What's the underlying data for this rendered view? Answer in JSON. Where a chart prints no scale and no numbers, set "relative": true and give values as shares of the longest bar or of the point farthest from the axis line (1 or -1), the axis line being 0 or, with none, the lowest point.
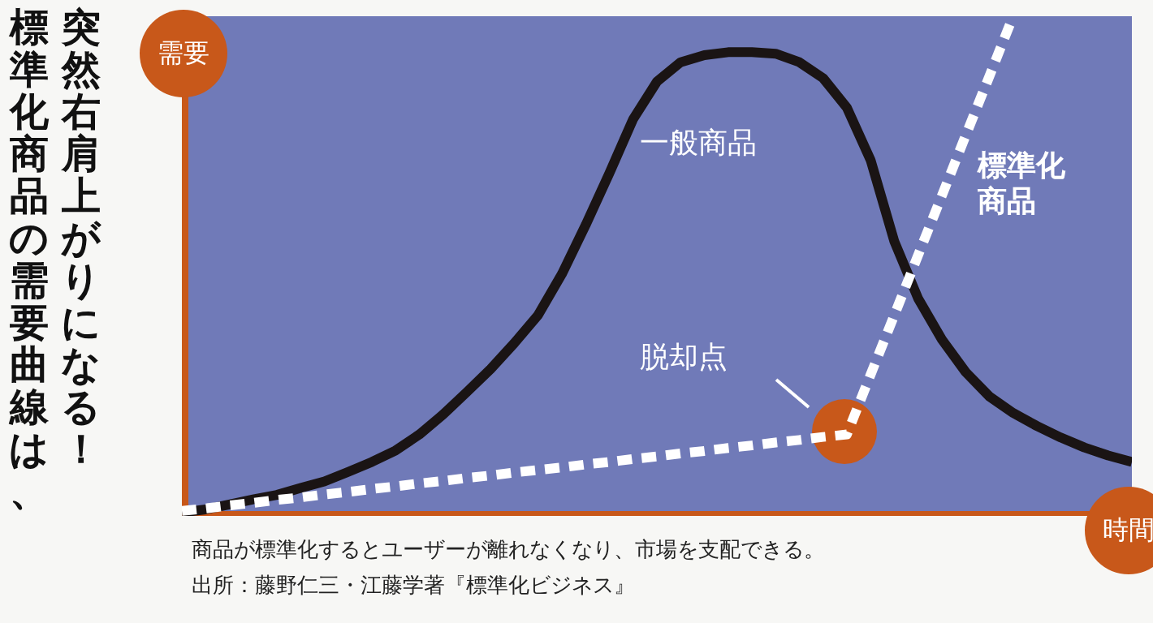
{
  "chart_data": {
    "type": "line",
    "title": "標準化商品の需要曲線は、突然右肩上がりになる！",
    "xlabel": "時間",
    "ylabel": "需要",
    "relative": true,
    "grid": false,
    "categories": [
      null,
      null,
      null,
      null,
      null,
      null,
      null,
      null,
      null,
      null,
      null,
      null,
      null,
      null,
      null,
      null,
      null,
      null,
      null,
      null,
      null,
      null,
      null,
      null,
      null,
      null,
      null,
      null,
      null,
      null,
      null,
      null,
      null,
      null,
      null,
      null,
      null,
      null,
      null,
      null,
      null
    ],
    "series": [
      {
        "name": "一般商品",
        "color": "#1a1414",
        "line_style": "solid",
        "values": [
          0.007,
          0.013,
          0.023,
          0.033,
          0.042,
          0.056,
          0.069,
          0.088,
          0.108,
          0.131,
          0.163,
          0.203,
          0.248,
          0.294,
          0.346,
          0.402,
          0.484,
          0.582,
          0.686,
          0.794,
          0.869,
          0.908,
          0.922,
          0.928,
          0.928,
          0.925,
          0.908,
          0.876,
          0.817,
          0.712,
          0.549,
          0.435,
          0.353,
          0.288,
          0.239,
          0.206,
          0.18,
          0.157,
          0.137,
          0.121,
          0.108
        ]
      },
      {
        "name": "標準化商品",
        "color": "#ffffff",
        "line_style": "dashed",
        "values": [
          0.01,
          0.015,
          0.021,
          0.026,
          0.032,
          0.037,
          0.043,
          0.048,
          0.054,
          0.059,
          0.065,
          0.07,
          0.076,
          0.081,
          0.087,
          0.092,
          0.097,
          0.103,
          0.108,
          0.114,
          0.119,
          0.125,
          0.13,
          0.136,
          0.141,
          0.147,
          0.152,
          0.158,
          0.163,
          0.283,
          0.402,
          0.522,
          0.641,
          0.761,
          0.88,
          1.0,
          null,
          null,
          null,
          null,
          null
        ]
      }
    ],
    "annotations": [
      "脱却点",
      "商品が標準化するとユーザーが離れなくなり、市場を支配できる。",
      "出所：藤野仁三・江藤学著『標準化ビジネス』"
    ]
  }
}
